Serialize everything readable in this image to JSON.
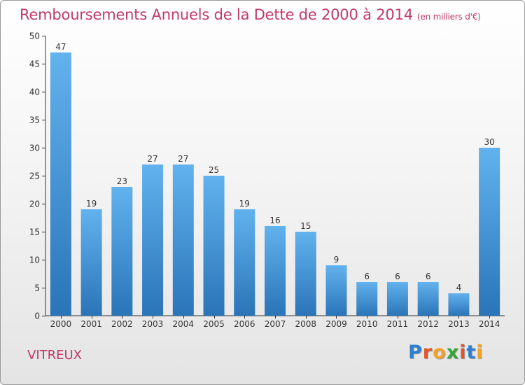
{
  "title": "Remboursements Annuels de la Dette de 2000 à 2014",
  "unit": "(en milliers d'€)",
  "commune": "VITREUX",
  "logo": {
    "letters": [
      "P",
      "r",
      "o",
      "x",
      "i",
      "t",
      "i"
    ],
    "colors": [
      "#2f7fcf",
      "#e2542b",
      "#f2a12b",
      "#3aa63a",
      "#e2542b",
      "#2f7fcf",
      "#f2a12b"
    ]
  },
  "colors": {
    "bar_top": "#62b2ee",
    "bar_bottom": "#2a74b7",
    "title": "#c03a67"
  },
  "chart_data": {
    "type": "bar",
    "categories": [
      "2000",
      "2001",
      "2002",
      "2003",
      "2004",
      "2005",
      "2006",
      "2007",
      "2008",
      "2009",
      "2010",
      "2011",
      "2012",
      "2013",
      "2014"
    ],
    "values": [
      47,
      19,
      23,
      27,
      27,
      25,
      19,
      16,
      15,
      9,
      6,
      6,
      6,
      4,
      30
    ],
    "ylim": [
      0,
      50
    ],
    "yticks": [
      0,
      5,
      10,
      15,
      20,
      25,
      30,
      35,
      40,
      45,
      50
    ],
    "grid": false
  }
}
